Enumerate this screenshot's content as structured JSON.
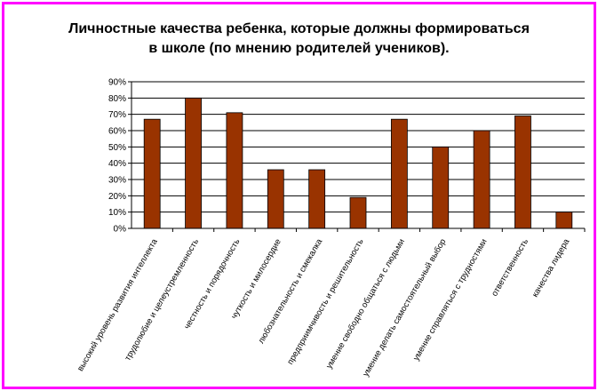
{
  "chart_data": {
    "type": "bar",
    "title_lines": [
      "Личностные качества ребенка, которые должны формироваться",
      "в школе (по мнению родителей учеников)."
    ],
    "categories": [
      "высокий уровень развития интеллекта",
      "трудолюбие и целеустремленность",
      "честность и порядочность",
      "чуткость и милосердие",
      "любознательность и смекалка",
      "предприимчивость и решительность",
      "умение свободно общаться с людьми",
      "умение делать самостоятельный выбор",
      "умение справляться с трудностями",
      "ответственность",
      "качества лидера"
    ],
    "values": [
      67,
      80,
      71,
      36,
      36,
      19,
      67,
      50,
      60,
      69,
      10
    ],
    "ylim": [
      0,
      90
    ],
    "yticks": [
      "0%",
      "10%",
      "20%",
      "30%",
      "40%",
      "50%",
      "60%",
      "70%",
      "80%",
      "90%"
    ],
    "grid": true,
    "colors": {
      "bar": "#993300",
      "bar_stroke": "#000000",
      "frame": "#ff00ff",
      "grid": "#000000"
    }
  }
}
